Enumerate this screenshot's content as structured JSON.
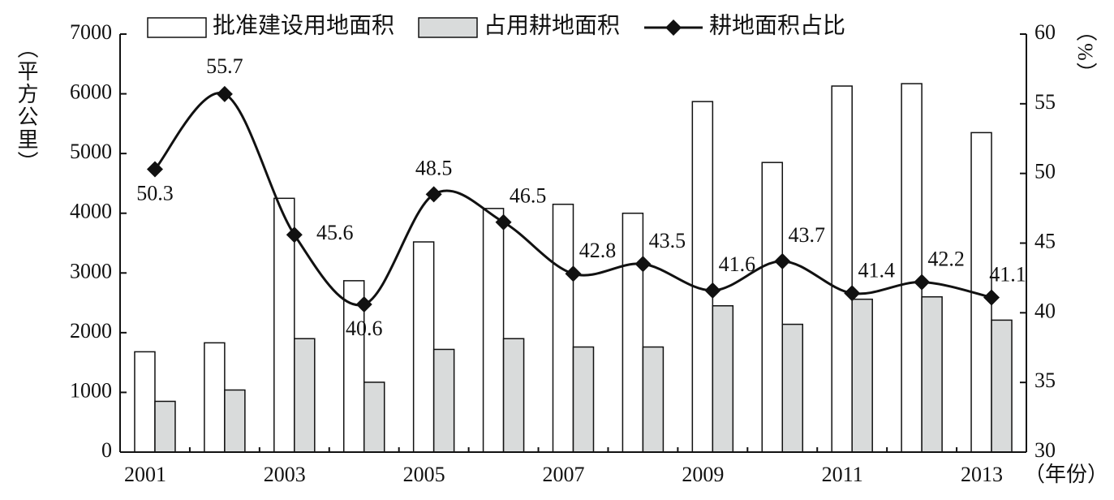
{
  "chart_data": {
    "type": "bar-line",
    "categories": [
      "2001",
      null,
      "2003",
      null,
      "2005",
      null,
      "2007",
      null,
      "2009",
      null,
      "2011",
      null,
      "2013"
    ],
    "x_label": "（年份）",
    "y_label": "（平方公里）",
    "y2_label": "（%）",
    "ylim": [
      0,
      7000
    ],
    "yticks": [
      0,
      1000,
      2000,
      3000,
      4000,
      5000,
      6000,
      7000
    ],
    "y2lim": [
      30,
      60
    ],
    "y2ticks": [
      30,
      35,
      40,
      45,
      50,
      55,
      60
    ],
    "legend": "top",
    "series": [
      {
        "name": "批准建设用地面积",
        "type": "bar",
        "color": "#ffffff",
        "values": [
          1680,
          1830,
          4250,
          2870,
          3520,
          4080,
          4150,
          4000,
          5870,
          4850,
          6130,
          6170,
          5350
        ]
      },
      {
        "name": "占用耕地面积",
        "type": "bar",
        "color": "#d9dbdb",
        "values": [
          850,
          1040,
          1900,
          1170,
          1720,
          1900,
          1760,
          1760,
          2450,
          2140,
          2560,
          2600,
          2210
        ]
      },
      {
        "name": "耕地面积占比",
        "type": "line",
        "axis": "y2",
        "color": "#111111",
        "values": [
          50.3,
          55.7,
          45.6,
          40.6,
          48.5,
          46.5,
          42.8,
          43.5,
          41.6,
          43.7,
          41.4,
          42.2,
          41.1
        ]
      }
    ]
  }
}
